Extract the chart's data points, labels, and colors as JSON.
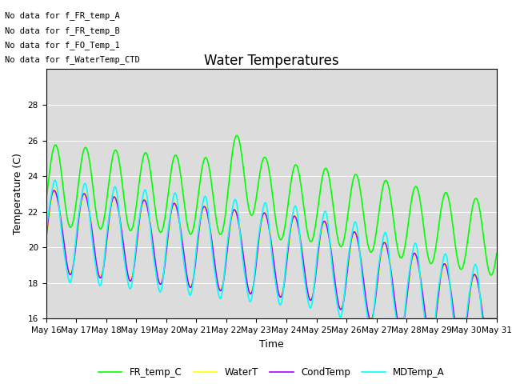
{
  "title": "Water Temperatures",
  "xlabel": "Time",
  "ylabel": "Temperature (C)",
  "ylim": [
    16,
    30
  ],
  "yticks": [
    16,
    18,
    20,
    22,
    24,
    26,
    28
  ],
  "x_tick_labels": [
    "May 16",
    "May 17",
    "May 18",
    "May 19",
    "May 20",
    "May 21",
    "May 22",
    "May 23",
    "May 24",
    "May 25",
    "May 26",
    "May 27",
    "May 28",
    "May 29",
    "May 30",
    "May 31"
  ],
  "annotations": [
    "No data for f_FR_temp_A",
    "No data for f_FR_temp_B",
    "No data for f_FO_Temp_1",
    "No data for f_WaterTemp_CTD"
  ],
  "series": {
    "FR_temp_C": {
      "color": "#00ff00",
      "linewidth": 1.2
    },
    "WaterT": {
      "color": "#ffff00",
      "linewidth": 1.2
    },
    "CondTemp": {
      "color": "#aa00ff",
      "linewidth": 1.2
    },
    "MDTemp_A": {
      "color": "#00ffff",
      "linewidth": 1.2
    }
  },
  "background_color": "#dcdcdc",
  "grid_color": "#ffffff",
  "title_fontsize": 12,
  "axis_fontsize": 9,
  "tick_fontsize": 7.5,
  "legend_fontsize": 8.5,
  "annotation_fontsize": 7.5
}
